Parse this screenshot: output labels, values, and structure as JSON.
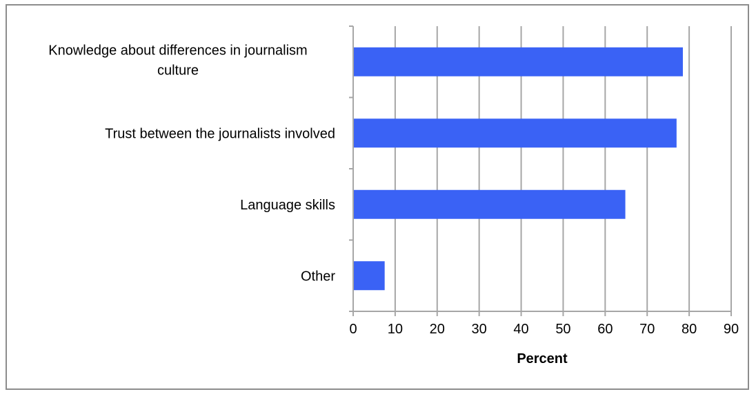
{
  "chart_data": {
    "type": "bar",
    "orientation": "horizontal",
    "categories": [
      "Knowledge about differences in journalism culture",
      "Trust between the journalists involved",
      "Language skills",
      "Other"
    ],
    "category_lines": [
      [
        "Knowledge about differences in journalism",
        "culture"
      ],
      [
        "Trust between the journalists involved"
      ],
      [
        "Language skills"
      ],
      [
        "Other"
      ]
    ],
    "values": [
      78.5,
      77,
      64.8,
      7.5
    ],
    "xlabel": "Percent",
    "xlim": [
      0,
      90
    ],
    "xticks": [
      "0",
      "10",
      "20",
      "30",
      "40",
      "50",
      "60",
      "70",
      "80",
      "90"
    ],
    "grid": true,
    "legend": "none",
    "bar_color": "#3a62f5",
    "grid_color": "#a6a6a6"
  }
}
